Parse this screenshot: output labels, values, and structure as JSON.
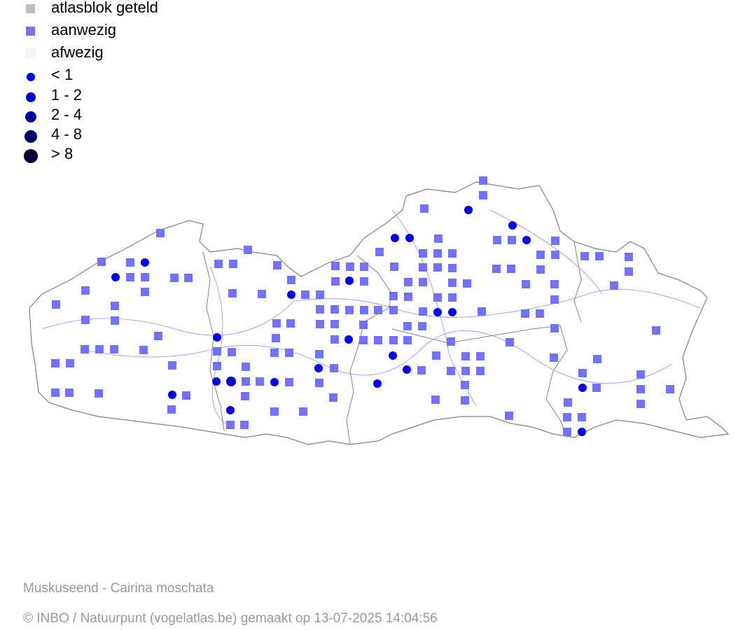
{
  "legend": {
    "items": [
      {
        "label": "atlasblok geteld",
        "color": "#bdbdbd"
      },
      {
        "label": "aanwezig",
        "color": "#7272ff"
      },
      {
        "label": "afwezig",
        "color": "#f4f4f4"
      },
      {
        "label": "< 1",
        "color": "#0000ee"
      },
      {
        "label": "1 - 2",
        "color": "#0000cc"
      },
      {
        "label": "2 - 4",
        "color": "#000099"
      },
      {
        "label": "4 - 8",
        "color": "#000066"
      },
      {
        "label": "> 8",
        "color": "#000033"
      }
    ]
  },
  "footer": {
    "species": "Muskuseend - Cairina moschata",
    "credit": "© INBO / Natuurpunt (vogelatlas.be) gemaakt op 13-07-2025 14:04:56"
  }
}
